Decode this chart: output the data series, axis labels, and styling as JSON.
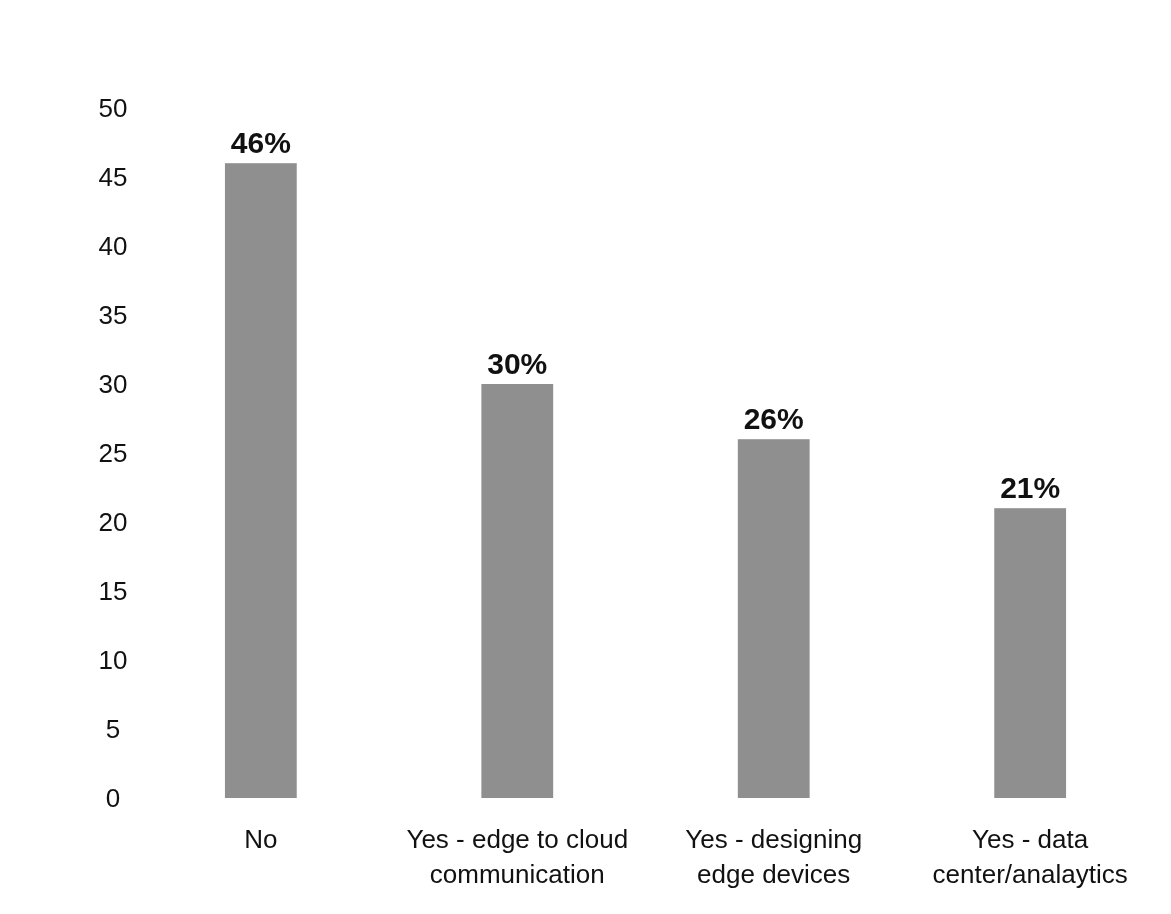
{
  "chart_data": {
    "type": "bar",
    "categories": [
      "No",
      "Yes - edge to cloud communication",
      "Yes - designing edge devices",
      "Yes - data center/analaytics"
    ],
    "values": [
      46,
      30,
      26,
      21
    ],
    "color": "#8f8f8f",
    "value_labels": [
      "46%",
      "30%",
      "26%",
      "21%"
    ],
    "ylim": [
      0,
      50
    ],
    "yticks": [
      0,
      5,
      10,
      15,
      20,
      25,
      30,
      35,
      40,
      45,
      50
    ],
    "grid": false
  }
}
